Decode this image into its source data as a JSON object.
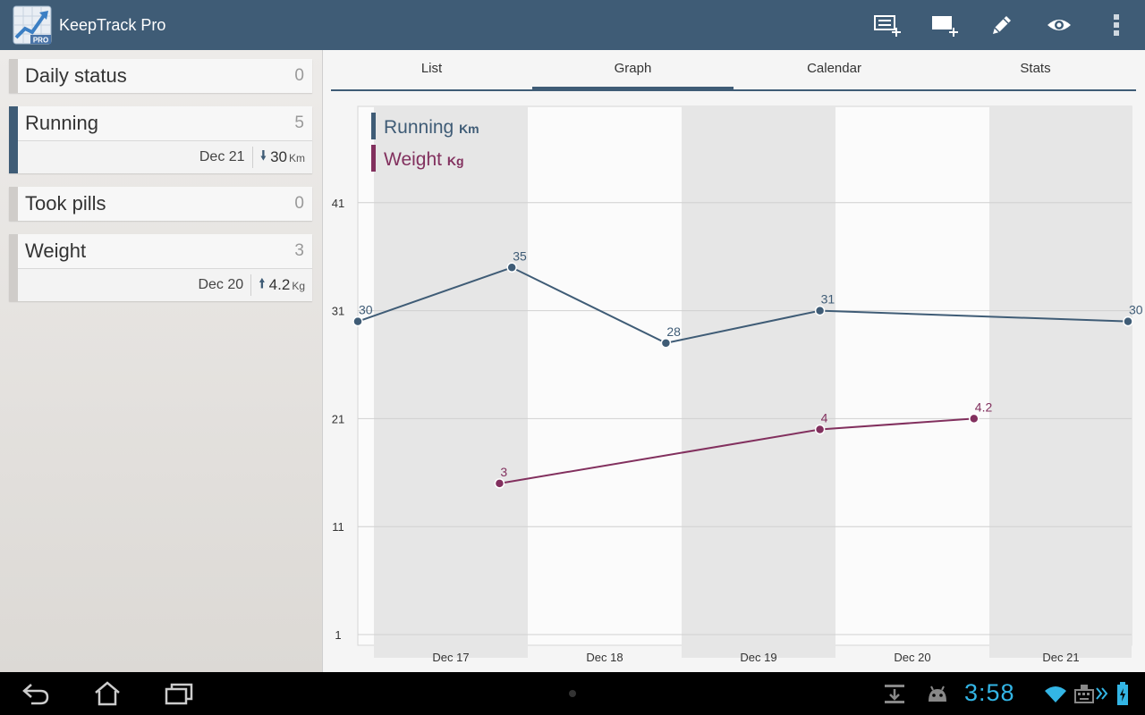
{
  "app": {
    "title": "KeepTrack Pro",
    "icon_badge": "PRO"
  },
  "actionbar": {
    "actions": [
      {
        "name": "add-entry-icon"
      },
      {
        "name": "add-tracker-icon"
      },
      {
        "name": "edit-pencil-icon"
      },
      {
        "name": "view-eye-icon"
      },
      {
        "name": "overflow-menu-icon"
      }
    ]
  },
  "trackers": [
    {
      "name": "Daily status",
      "count": "0",
      "active": false
    },
    {
      "name": "Running",
      "count": "5",
      "active": true,
      "last_date": "Dec 21",
      "trend": "down",
      "last_value": "30",
      "unit": "Km"
    },
    {
      "name": "Took pills",
      "count": "0",
      "active": false
    },
    {
      "name": "Weight",
      "count": "3",
      "active": false,
      "last_date": "Dec 20",
      "trend": "up",
      "last_value": "4.2",
      "unit": "Kg"
    }
  ],
  "tabs": {
    "list": "List",
    "graph": "Graph",
    "calendar": "Calendar",
    "stats": "Stats",
    "selected": "graph"
  },
  "chart_data": {
    "type": "line",
    "categories": [
      "Dec 17",
      "Dec 18",
      "Dec 19",
      "Dec 20",
      "Dec 21"
    ],
    "yticks": [
      1,
      11,
      21,
      31,
      41
    ],
    "ylim": [
      1,
      50
    ],
    "grid": true,
    "legend_position": "top-left",
    "series": [
      {
        "name": "Running",
        "unit": "Km",
        "color": "#3f5c76",
        "points": [
          {
            "x": 0.0,
            "y": 30,
            "label": "30"
          },
          {
            "x": 1.0,
            "y": 35,
            "label": "35"
          },
          {
            "x": 2.0,
            "y": 28,
            "label": "28"
          },
          {
            "x": 3.0,
            "y": 31,
            "label": "31"
          },
          {
            "x": 5.0,
            "y": 30,
            "label": "30"
          }
        ]
      },
      {
        "name": "Weight",
        "unit": "Kg",
        "color": "#82305e",
        "points": [
          {
            "x": 0.92,
            "y": 15,
            "label": "3"
          },
          {
            "x": 3.0,
            "y": 20,
            "label": "4"
          },
          {
            "x": 4.0,
            "y": 21,
            "label": "4.2"
          }
        ]
      }
    ]
  },
  "system": {
    "clock": "3:58"
  }
}
